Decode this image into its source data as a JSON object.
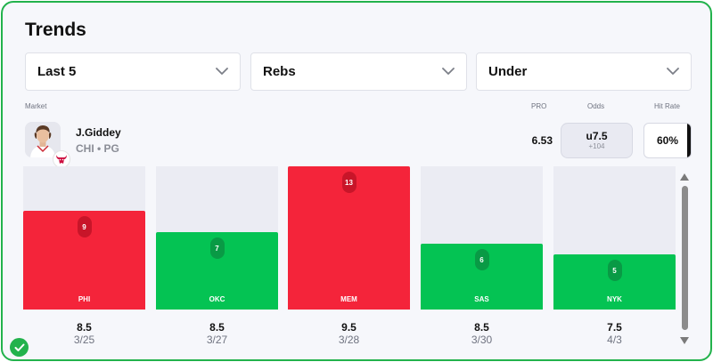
{
  "title": "Trends",
  "filters": {
    "period": "Last 5",
    "stat": "Rebs",
    "side": "Under"
  },
  "headers": {
    "market": "Market",
    "pro": "PRO",
    "odds": "Odds",
    "hit_rate": "Hit Rate"
  },
  "player": {
    "name": "J.Giddey",
    "team": "CHI",
    "position": "PG",
    "meta": "CHI • PG",
    "pro": "6.53",
    "odds_line": "u7.5",
    "odds_price": "+104",
    "hit_rate": "60%"
  },
  "colors": {
    "over": "#f4243a",
    "under": "#04c353",
    "over_badge": "#c81529",
    "under_badge": "#099a45",
    "bar_track": "#ebecf3",
    "border": "#22b24c"
  },
  "chart_data": {
    "type": "bar",
    "categories": [
      "PHI",
      "OKC",
      "MEM",
      "SAS",
      "NYK"
    ],
    "values": [
      9,
      7,
      13,
      6,
      5
    ],
    "lines": [
      "8.5",
      "8.5",
      "9.5",
      "8.5",
      "7.5"
    ],
    "dates": [
      "3/25",
      "3/27",
      "3/28",
      "3/30",
      "4/3"
    ],
    "results": [
      "over",
      "under",
      "over",
      "under",
      "under"
    ],
    "ylim": [
      0,
      13
    ]
  }
}
